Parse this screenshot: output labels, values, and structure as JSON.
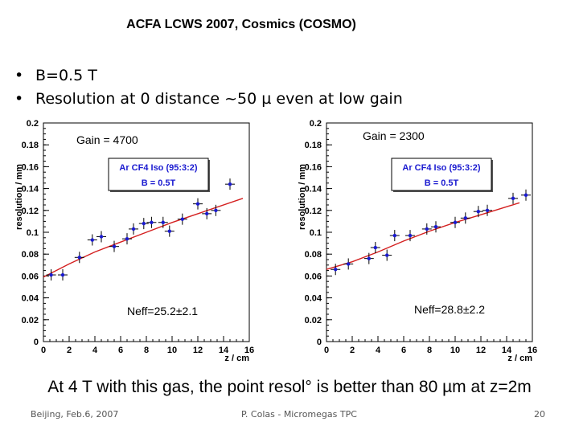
{
  "slide": {
    "title": "ACFA LCWS 2007, Cosmics (COSMO)",
    "bullets": [
      "B=0.5 T",
      "Resolution at 0 distance ~50 µ even at low gain"
    ],
    "conclusion": "At 4 T with this gas, the point resol° is better than 80 µm at z=2m",
    "footer": {
      "left": "Beijing, Feb.6, 2007",
      "center": "P. Colas - Micromegas TPC",
      "page": "20"
    }
  },
  "chart_data": [
    {
      "type": "scatter",
      "ylabel": "resolution / mm",
      "xlabel": "z / cm",
      "xlim": [
        0,
        16
      ],
      "ylim": [
        0,
        0.2
      ],
      "x_ticks": [
        "0",
        "2",
        "4",
        "6",
        "8",
        "10",
        "12",
        "14",
        "16"
      ],
      "y_ticks": [
        "0",
        "0.02",
        "0.04",
        "0.06",
        "0.08",
        "0.1",
        "0.12",
        "0.14",
        "0.16",
        "0.18",
        "0.2"
      ],
      "legend": [
        "Ar CF4 Iso (95:3:2)",
        "B = 0.5T"
      ],
      "annotations": [
        "Gain = 4700",
        "Neff=25.2±2.1"
      ],
      "points": [
        {
          "x": 0.6,
          "y": 0.061
        },
        {
          "x": 1.5,
          "y": 0.061
        },
        {
          "x": 2.8,
          "y": 0.077
        },
        {
          "x": 3.8,
          "y": 0.093
        },
        {
          "x": 4.5,
          "y": 0.096
        },
        {
          "x": 5.5,
          "y": 0.087
        },
        {
          "x": 6.5,
          "y": 0.094
        },
        {
          "x": 7.0,
          "y": 0.103
        },
        {
          "x": 7.8,
          "y": 0.108
        },
        {
          "x": 8.4,
          "y": 0.109
        },
        {
          "x": 9.3,
          "y": 0.109
        },
        {
          "x": 9.8,
          "y": 0.101
        },
        {
          "x": 10.8,
          "y": 0.112
        },
        {
          "x": 12.0,
          "y": 0.126
        },
        {
          "x": 12.7,
          "y": 0.117
        },
        {
          "x": 13.4,
          "y": 0.12
        },
        {
          "x": 14.5,
          "y": 0.144
        }
      ],
      "fit": [
        {
          "x": 0,
          "y": 0.059
        },
        {
          "x": 2,
          "y": 0.071
        },
        {
          "x": 4,
          "y": 0.082
        },
        {
          "x": 6,
          "y": 0.091
        },
        {
          "x": 8,
          "y": 0.1
        },
        {
          "x": 10,
          "y": 0.109
        },
        {
          "x": 12,
          "y": 0.117
        },
        {
          "x": 15.5,
          "y": 0.131
        }
      ]
    },
    {
      "type": "scatter",
      "ylabel": "resolution / mm",
      "xlabel": "z / cm",
      "xlim": [
        0,
        16
      ],
      "ylim": [
        0,
        0.2
      ],
      "x_ticks": [
        "0",
        "2",
        "4",
        "6",
        "8",
        "10",
        "12",
        "14",
        "16"
      ],
      "y_ticks": [
        "0",
        "0.02",
        "0.04",
        "0.06",
        "0.08",
        "0.1",
        "0.12",
        "0.14",
        "0.16",
        "0.18",
        "0.2"
      ],
      "legend": [
        "Ar CF4 Iso (95:3:2)",
        "B = 0.5T"
      ],
      "annotations": [
        "Gain = 2300",
        "Neff=28.8±2.2"
      ],
      "points": [
        {
          "x": 0.7,
          "y": 0.066
        },
        {
          "x": 1.7,
          "y": 0.071
        },
        {
          "x": 3.3,
          "y": 0.076
        },
        {
          "x": 3.8,
          "y": 0.086
        },
        {
          "x": 4.7,
          "y": 0.079
        },
        {
          "x": 5.3,
          "y": 0.097
        },
        {
          "x": 6.5,
          "y": 0.097
        },
        {
          "x": 7.8,
          "y": 0.103
        },
        {
          "x": 8.5,
          "y": 0.105
        },
        {
          "x": 10.0,
          "y": 0.109
        },
        {
          "x": 10.8,
          "y": 0.113
        },
        {
          "x": 11.8,
          "y": 0.119
        },
        {
          "x": 12.5,
          "y": 0.12
        },
        {
          "x": 14.5,
          "y": 0.131
        },
        {
          "x": 15.5,
          "y": 0.134
        }
      ],
      "fit": [
        {
          "x": 0,
          "y": 0.066
        },
        {
          "x": 2,
          "y": 0.073
        },
        {
          "x": 4,
          "y": 0.082
        },
        {
          "x": 6,
          "y": 0.092
        },
        {
          "x": 8,
          "y": 0.101
        },
        {
          "x": 10,
          "y": 0.109
        },
        {
          "x": 12,
          "y": 0.116
        },
        {
          "x": 15,
          "y": 0.127
        }
      ]
    }
  ]
}
